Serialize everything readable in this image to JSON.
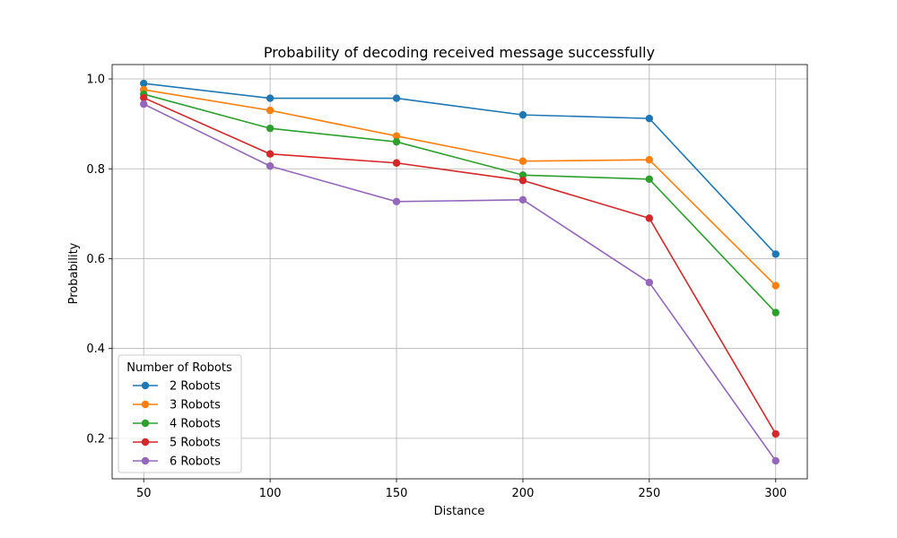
{
  "chart_data": {
    "type": "line",
    "title": "Probability of decoding received message successfully",
    "xlabel": "Distance",
    "ylabel": "Probability",
    "x": [
      50,
      100,
      150,
      200,
      250,
      300
    ],
    "xlim": [
      37.5,
      312.5
    ],
    "ylim": [
      0.11,
      1.032
    ],
    "xticks": [
      50,
      100,
      150,
      200,
      250,
      300
    ],
    "yticks": [
      0.2,
      0.4,
      0.6,
      0.8,
      1.0
    ],
    "ytick_labels": [
      "0.2",
      "0.4",
      "0.6",
      "0.8",
      "1.0"
    ],
    "grid": true,
    "legend": {
      "title": "Number of Robots",
      "location": "lower-left"
    },
    "series": [
      {
        "name": "2 Robots",
        "color": "#1f77b4",
        "values": [
          0.99,
          0.957,
          0.957,
          0.92,
          0.912,
          0.61
        ]
      },
      {
        "name": "3 Robots",
        "color": "#ff7f0e",
        "values": [
          0.976,
          0.93,
          0.873,
          0.817,
          0.82,
          0.54
        ]
      },
      {
        "name": "4 Robots",
        "color": "#2ca02c",
        "values": [
          0.966,
          0.89,
          0.86,
          0.786,
          0.777,
          0.48
        ]
      },
      {
        "name": "5 Robots",
        "color": "#d62728",
        "values": [
          0.958,
          0.833,
          0.813,
          0.774,
          0.69,
          0.21
        ]
      },
      {
        "name": "6 Robots",
        "color": "#9467bd",
        "values": [
          0.944,
          0.806,
          0.727,
          0.731,
          0.547,
          0.15
        ]
      }
    ]
  }
}
